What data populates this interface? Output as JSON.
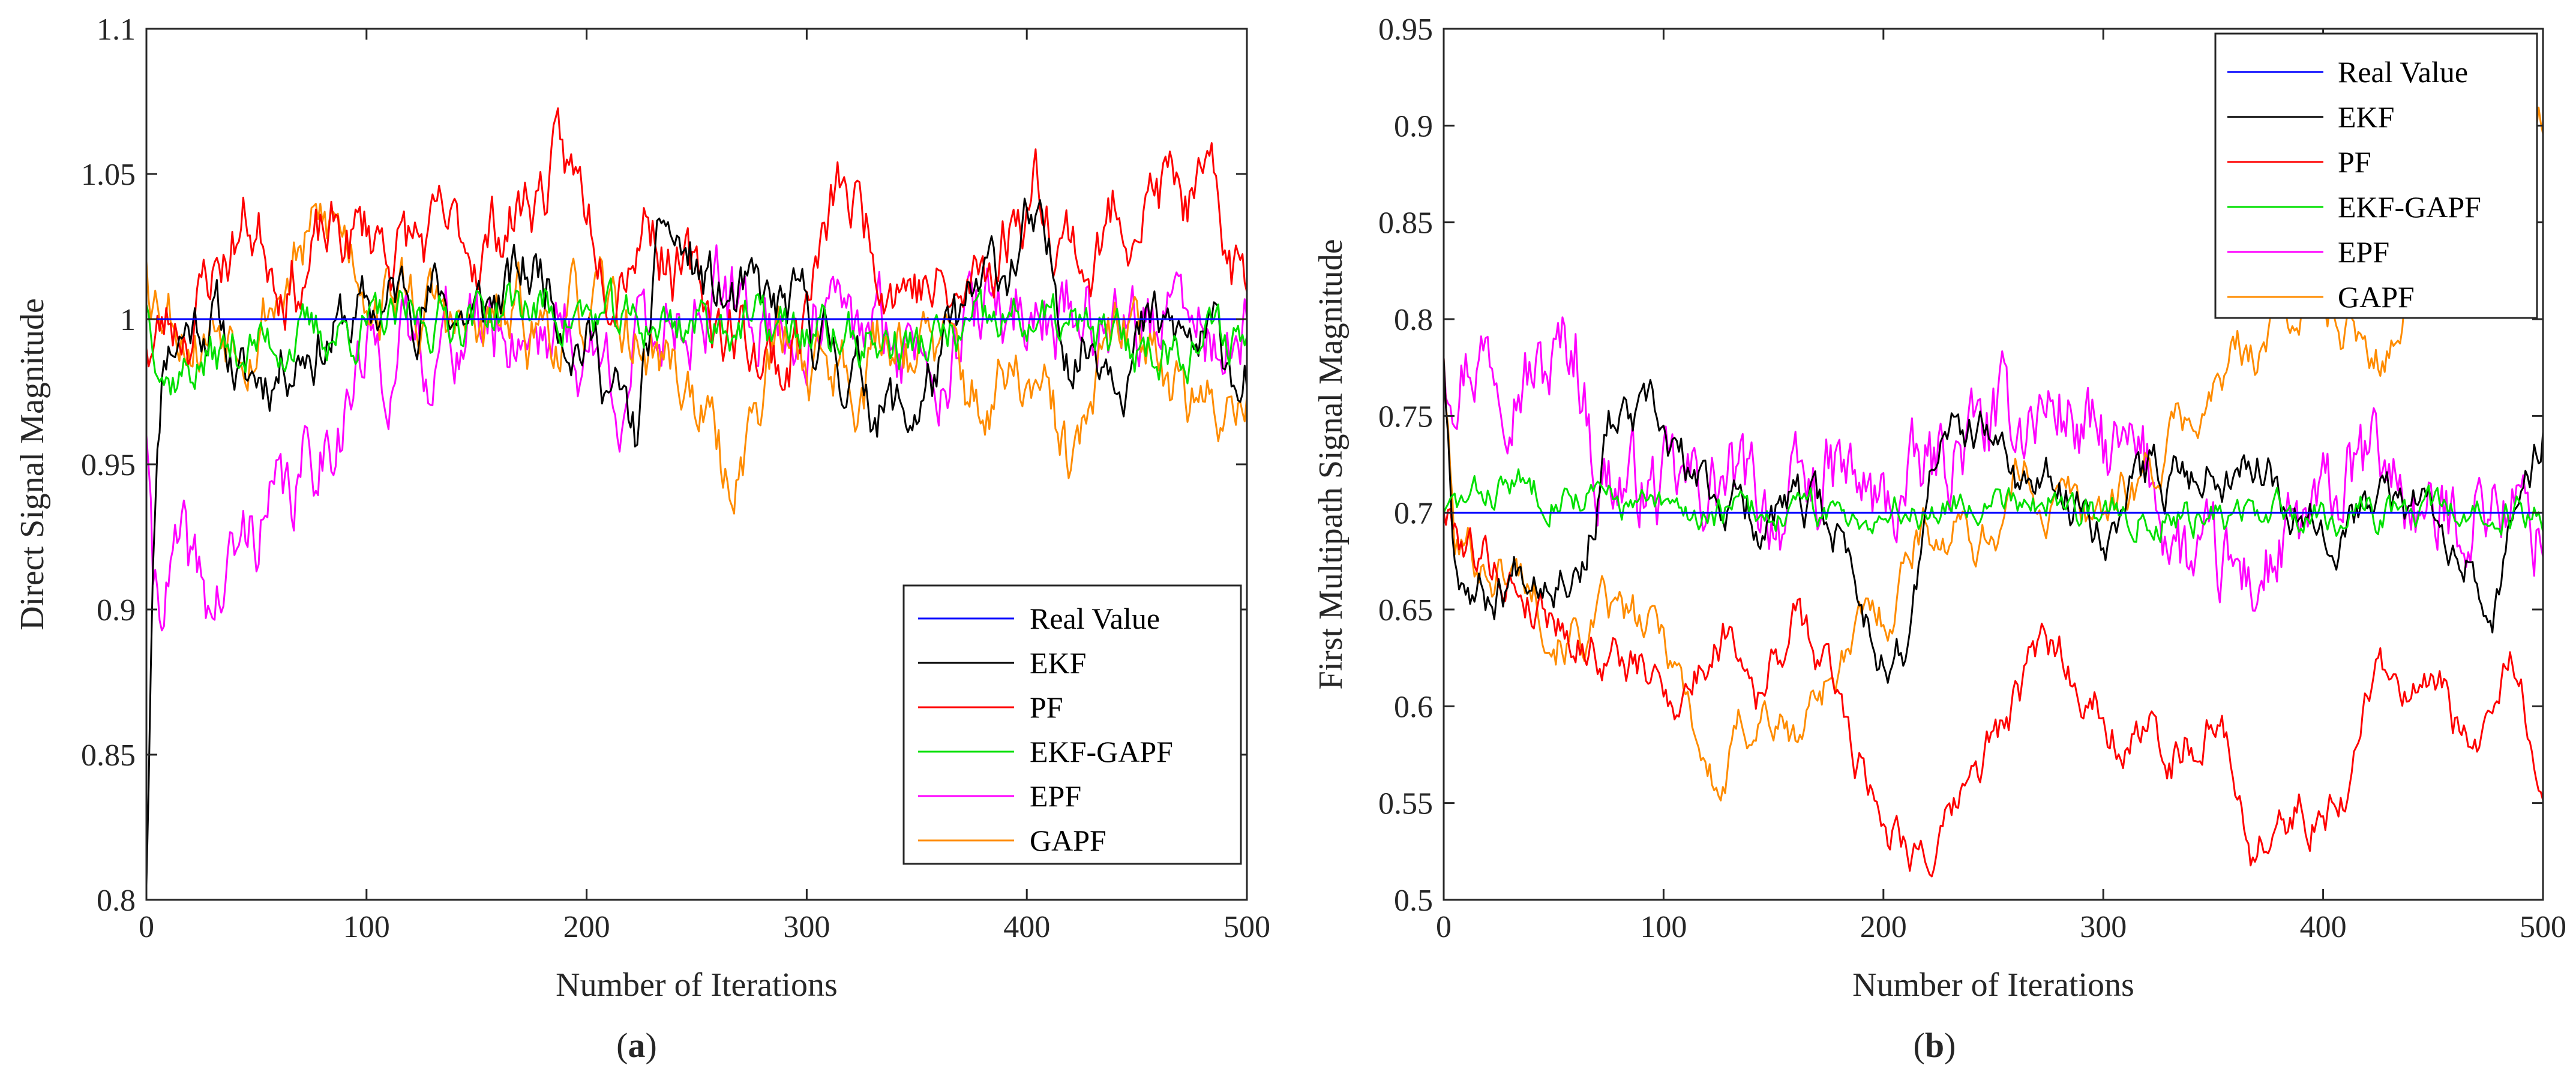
{
  "chart_data": [
    {
      "type": "line",
      "panel_label": "(a)",
      "panel_label_letter": "a",
      "xlabel": "Number of Iterations",
      "ylabel": "Direct Signal Magnitude",
      "xlim": [
        0,
        500
      ],
      "ylim": [
        0.8,
        1.1
      ],
      "xticks": [
        0,
        100,
        200,
        300,
        400,
        500
      ],
      "xtick_labels": [
        "0",
        "100",
        "200",
        "300",
        "400",
        "500"
      ],
      "yticks": [
        0.8,
        0.85,
        0.9,
        0.95,
        1.0,
        1.05,
        1.1
      ],
      "ytick_labels": [
        "0.8",
        "0.85",
        "0.9",
        "0.95",
        "1",
        "1.05",
        "1.1"
      ],
      "grid": false,
      "legend_position": "lower-right",
      "series": [
        {
          "name": "Real Value",
          "color": "#0000ff",
          "kind": "constant",
          "points": [
            [
              0,
              1.0
            ],
            [
              500,
              1.0
            ]
          ]
        },
        {
          "name": "EKF",
          "color": "#000000",
          "kind": "noisy",
          "seed": 11,
          "noise": 0.009,
          "momentum": 0.82,
          "points": [
            [
              0,
              0.805
            ],
            [
              3,
              0.93
            ],
            [
              8,
              0.995
            ],
            [
              30,
              1.005
            ],
            [
              45,
              0.975
            ],
            [
              70,
              0.995
            ],
            [
              100,
              1.0
            ],
            [
              125,
              1.012
            ],
            [
              150,
              1.0
            ],
            [
              180,
              1.018
            ],
            [
              205,
              0.99
            ],
            [
              222,
              0.955
            ],
            [
              235,
              1.03
            ],
            [
              260,
              1.005
            ],
            [
              300,
              0.997
            ],
            [
              345,
              0.965
            ],
            [
              375,
              1.0
            ],
            [
              400,
              1.03
            ],
            [
              420,
              0.995
            ],
            [
              450,
              0.995
            ],
            [
              500,
              0.985
            ]
          ]
        },
        {
          "name": "PF",
          "color": "#ff0000",
          "kind": "noisy",
          "seed": 23,
          "noise": 0.01,
          "momentum": 0.85,
          "points": [
            [
              0,
              0.99
            ],
            [
              20,
              1.005
            ],
            [
              45,
              1.035
            ],
            [
              70,
              1.02
            ],
            [
              105,
              1.03
            ],
            [
              140,
              1.02
            ],
            [
              185,
              1.05
            ],
            [
              210,
              1.03
            ],
            [
              228,
              1.045
            ],
            [
              250,
              1.005
            ],
            [
              290,
              0.985
            ],
            [
              315,
              1.04
            ],
            [
              345,
              1.02
            ],
            [
              370,
              1.0
            ],
            [
              403,
              1.05
            ],
            [
              430,
              1.02
            ],
            [
              452,
              1.05
            ],
            [
              480,
              1.035
            ],
            [
              500,
              1.01
            ]
          ]
        },
        {
          "name": "EKF-GAPF",
          "color": "#00e000",
          "kind": "noisy",
          "seed": 37,
          "noise": 0.007,
          "momentum": 0.7,
          "points": [
            [
              0,
              1.005
            ],
            [
              10,
              0.98
            ],
            [
              40,
              0.99
            ],
            [
              80,
              0.995
            ],
            [
              130,
              1.0
            ],
            [
              170,
              1.005
            ],
            [
              220,
              0.998
            ],
            [
              260,
              1.0
            ],
            [
              300,
              0.995
            ],
            [
              350,
              0.99
            ],
            [
              400,
              1.0
            ],
            [
              450,
              0.99
            ],
            [
              500,
              0.995
            ]
          ]
        },
        {
          "name": "EPF",
          "color": "#ff00ff",
          "kind": "noisy",
          "seed": 41,
          "noise": 0.012,
          "momentum": 0.75,
          "points": [
            [
              0,
              0.96
            ],
            [
              3,
              0.905
            ],
            [
              15,
              0.915
            ],
            [
              30,
              0.9
            ],
            [
              50,
              0.93
            ],
            [
              65,
              0.935
            ],
            [
              80,
              0.96
            ],
            [
              100,
              0.985
            ],
            [
              140,
              0.995
            ],
            [
              180,
              1.0
            ],
            [
              215,
              0.98
            ],
            [
              240,
              1.005
            ],
            [
              300,
              0.998
            ],
            [
              350,
              0.99
            ],
            [
              400,
              1.005
            ],
            [
              450,
              1.0
            ],
            [
              500,
              0.99
            ]
          ]
        },
        {
          "name": "GAPF",
          "color": "#ff8c00",
          "kind": "noisy",
          "seed": 53,
          "noise": 0.01,
          "momentum": 0.85,
          "points": [
            [
              0,
              1.02
            ],
            [
              25,
              1.0
            ],
            [
              60,
              1.015
            ],
            [
              85,
              1.03
            ],
            [
              115,
              1.01
            ],
            [
              150,
              0.99
            ],
            [
              190,
              1.0
            ],
            [
              230,
              0.99
            ],
            [
              250,
              0.975
            ],
            [
              263,
              0.94
            ],
            [
              285,
              0.99
            ],
            [
              320,
              0.985
            ],
            [
              345,
              1.0
            ],
            [
              375,
              0.97
            ],
            [
              400,
              0.975
            ],
            [
              420,
              0.945
            ],
            [
              440,
              0.985
            ],
            [
              460,
              1.0
            ],
            [
              480,
              0.96
            ],
            [
              500,
              0.985
            ]
          ]
        }
      ]
    },
    {
      "type": "line",
      "panel_label": "(b)",
      "panel_label_letter": "b",
      "xlabel": "Number of Iterations",
      "ylabel": "First Multipath Signal Magnitude",
      "xlim": [
        0,
        500
      ],
      "ylim": [
        0.5,
        0.95
      ],
      "xticks": [
        0,
        100,
        200,
        300,
        400,
        500
      ],
      "xtick_labels": [
        "0",
        "100",
        "200",
        "300",
        "400",
        "500"
      ],
      "yticks": [
        0.5,
        0.55,
        0.6,
        0.65,
        0.7,
        0.75,
        0.8,
        0.85,
        0.9,
        0.95
      ],
      "ytick_labels": [
        "0.5",
        "0.55",
        "0.6",
        "0.65",
        "0.7",
        "0.75",
        "0.8",
        "0.85",
        "0.9",
        "0.95"
      ],
      "grid": false,
      "legend_position": "top-right",
      "series": [
        {
          "name": "Real Value",
          "color": "#0000ff",
          "kind": "constant",
          "points": [
            [
              0,
              0.7
            ],
            [
              500,
              0.7
            ]
          ]
        },
        {
          "name": "EKF",
          "color": "#000000",
          "kind": "noisy",
          "seed": 67,
          "noise": 0.01,
          "momentum": 0.85,
          "points": [
            [
              0,
              0.78
            ],
            [
              5,
              0.685
            ],
            [
              20,
              0.66
            ],
            [
              40,
              0.68
            ],
            [
              65,
              0.685
            ],
            [
              75,
              0.745
            ],
            [
              95,
              0.74
            ],
            [
              115,
              0.71
            ],
            [
              150,
              0.7
            ],
            [
              180,
              0.69
            ],
            [
              195,
              0.64
            ],
            [
              210,
              0.625
            ],
            [
              225,
              0.74
            ],
            [
              250,
              0.73
            ],
            [
              270,
              0.71
            ],
            [
              300,
              0.7
            ],
            [
              330,
              0.72
            ],
            [
              365,
              0.735
            ],
            [
              390,
              0.71
            ],
            [
              420,
              0.7
            ],
            [
              460,
              0.7
            ],
            [
              480,
              0.665
            ],
            [
              500,
              0.745
            ]
          ]
        },
        {
          "name": "PF",
          "color": "#ff0000",
          "kind": "noisy",
          "seed": 79,
          "noise": 0.01,
          "momentum": 0.9,
          "points": [
            [
              0,
              0.7
            ],
            [
              20,
              0.68
            ],
            [
              50,
              0.655
            ],
            [
              80,
              0.63
            ],
            [
              100,
              0.605
            ],
            [
              115,
              0.62
            ],
            [
              130,
              0.65
            ],
            [
              145,
              0.62
            ],
            [
              160,
              0.645
            ],
            [
              180,
              0.6
            ],
            [
              200,
              0.55
            ],
            [
              230,
              0.53
            ],
            [
              250,
              0.58
            ],
            [
              275,
              0.62
            ],
            [
              300,
              0.61
            ],
            [
              325,
              0.58
            ],
            [
              350,
              0.6
            ],
            [
              370,
              0.53
            ],
            [
              390,
              0.545
            ],
            [
              410,
              0.565
            ],
            [
              425,
              0.625
            ],
            [
              445,
              0.6
            ],
            [
              470,
              0.575
            ],
            [
              485,
              0.61
            ],
            [
              500,
              0.575
            ]
          ]
        },
        {
          "name": "EKF-GAPF",
          "color": "#00e000",
          "kind": "noisy",
          "seed": 83,
          "noise": 0.007,
          "momentum": 0.7,
          "points": [
            [
              0,
              0.7
            ],
            [
              30,
              0.715
            ],
            [
              60,
              0.71
            ],
            [
              100,
              0.7
            ],
            [
              150,
              0.7
            ],
            [
              200,
              0.7
            ],
            [
              260,
              0.71
            ],
            [
              300,
              0.7
            ],
            [
              350,
              0.698
            ],
            [
              400,
              0.7
            ],
            [
              450,
              0.7
            ],
            [
              500,
              0.698
            ]
          ]
        },
        {
          "name": "EPF",
          "color": "#ff00ff",
          "kind": "noisy",
          "seed": 97,
          "noise": 0.018,
          "momentum": 0.7,
          "points": [
            [
              0,
              0.78
            ],
            [
              20,
              0.785
            ],
            [
              45,
              0.77
            ],
            [
              60,
              0.79
            ],
            [
              70,
              0.72
            ],
            [
              100,
              0.71
            ],
            [
              130,
              0.715
            ],
            [
              155,
              0.7
            ],
            [
              180,
              0.72
            ],
            [
              200,
              0.7
            ],
            [
              230,
              0.73
            ],
            [
              260,
              0.75
            ],
            [
              280,
              0.755
            ],
            [
              300,
              0.73
            ],
            [
              320,
              0.72
            ],
            [
              340,
              0.67
            ],
            [
              370,
              0.665
            ],
            [
              400,
              0.7
            ],
            [
              425,
              0.73
            ],
            [
              450,
              0.69
            ],
            [
              475,
              0.71
            ],
            [
              500,
              0.69
            ]
          ]
        },
        {
          "name": "GAPF",
          "color": "#ff8c00",
          "kind": "noisy",
          "seed": 101,
          "noise": 0.01,
          "momentum": 0.9,
          "points": [
            [
              0,
              0.78
            ],
            [
              5,
              0.68
            ],
            [
              30,
              0.675
            ],
            [
              60,
              0.65
            ],
            [
              90,
              0.63
            ],
            [
              105,
              0.625
            ],
            [
              125,
              0.555
            ],
            [
              145,
              0.605
            ],
            [
              160,
              0.58
            ],
            [
              175,
              0.62
            ],
            [
              200,
              0.64
            ],
            [
              215,
              0.7
            ],
            [
              245,
              0.69
            ],
            [
              265,
              0.72
            ],
            [
              290,
              0.7
            ],
            [
              320,
              0.72
            ],
            [
              350,
              0.76
            ],
            [
              370,
              0.79
            ],
            [
              395,
              0.81
            ],
            [
              425,
              0.79
            ],
            [
              450,
              0.85
            ],
            [
              475,
              0.86
            ],
            [
              490,
              0.9
            ],
            [
              500,
              0.915
            ]
          ]
        }
      ]
    }
  ]
}
